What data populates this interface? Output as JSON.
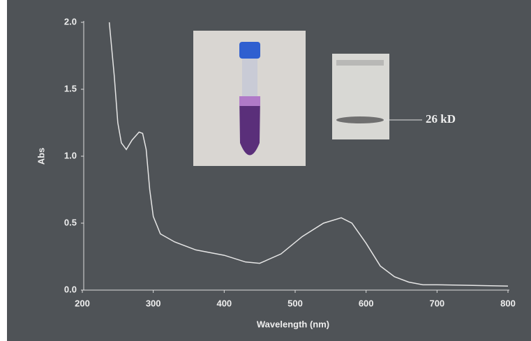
{
  "chart_data": {
    "type": "line",
    "x_label": "Wavelength (nm)",
    "y_label": "Abs",
    "annotation": "26 kD",
    "x": [
      238,
      245,
      250,
      255,
      262,
      270,
      280,
      285,
      290,
      295,
      300,
      310,
      330,
      360,
      400,
      430,
      450,
      480,
      510,
      540,
      565,
      580,
      600,
      620,
      640,
      660,
      680,
      700,
      750,
      800
    ],
    "series": [
      {
        "color": "#e6e6e6",
        "values": [
          2.0,
          1.6,
          1.25,
          1.1,
          1.05,
          1.12,
          1.18,
          1.17,
          1.05,
          0.75,
          0.55,
          0.42,
          0.36,
          0.3,
          0.26,
          0.21,
          0.2,
          0.27,
          0.4,
          0.5,
          0.54,
          0.5,
          0.35,
          0.18,
          0.1,
          0.06,
          0.04,
          0.04,
          0.035,
          0.03
        ]
      }
    ],
    "xlim": [
      200,
      800
    ],
    "xticks": [
      200,
      300,
      400,
      500,
      600,
      700,
      800
    ],
    "ylim": [
      0,
      2
    ],
    "yticks": [
      {
        "value": 0,
        "label": "0.0"
      },
      {
        "value": 0.5,
        "label": "0.5"
      },
      {
        "value": 1,
        "label": "1.0"
      },
      {
        "value": 1.5,
        "label": "1.5"
      },
      {
        "value": 2,
        "label": "2.0"
      }
    ]
  }
}
